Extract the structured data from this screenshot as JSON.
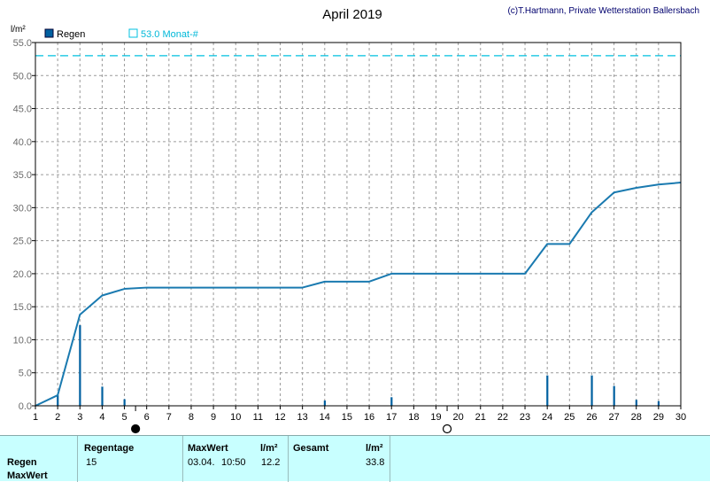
{
  "chart_data": {
    "type": "bar",
    "title": "April 2019",
    "credit": "(c)T.Hartmann, Private Wetterstation Ballersbach",
    "ylabel": "l/m²",
    "ylim": [
      0,
      55
    ],
    "yticks": [
      "0.0",
      "5.0",
      "10.0",
      "15.0",
      "20.0",
      "25.0",
      "30.0",
      "35.0",
      "40.0",
      "45.0",
      "50.0",
      "55.0"
    ],
    "xlim": [
      1,
      30
    ],
    "xticks": [
      "1",
      "2",
      "3",
      "4",
      "5",
      "6",
      "7",
      "8",
      "9",
      "10",
      "11",
      "12",
      "13",
      "14",
      "15",
      "16",
      "17",
      "18",
      "19",
      "20",
      "21",
      "22",
      "23",
      "24",
      "25",
      "26",
      "27",
      "28",
      "29",
      "30"
    ],
    "grid": true,
    "legend": [
      {
        "label": "Regen",
        "color": "#0060a0"
      },
      {
        "label": "53.0 Monat-#",
        "color": "#00c0e0"
      }
    ],
    "bars": {
      "name": "Regen",
      "x": [
        2,
        3,
        4,
        5,
        14,
        17,
        24,
        26,
        27,
        28,
        29
      ],
      "values": [
        1.6,
        12.2,
        2.9,
        1.0,
        0.8,
        1.3,
        4.6,
        4.6,
        3.0,
        0.9,
        0.7
      ]
    },
    "cumulative": {
      "x": [
        1,
        2,
        3,
        4,
        5,
        6,
        13,
        14,
        16,
        17,
        23,
        24,
        25,
        26,
        27,
        28,
        29,
        30
      ],
      "values": [
        0,
        1.6,
        13.8,
        16.7,
        17.7,
        17.9,
        17.9,
        18.8,
        18.8,
        20.0,
        20.0,
        24.5,
        24.5,
        29.3,
        32.3,
        33.0,
        33.5,
        33.8
      ]
    },
    "reference_line": {
      "value": 53.0,
      "color": "#00c0e0"
    },
    "moon_phases": [
      {
        "day": 5.5,
        "phase": "new"
      },
      {
        "day": 19.5,
        "phase": "full"
      }
    ],
    "bar_color": "#0060a0",
    "line_color": "#1a7ab0"
  },
  "stats": {
    "row_regen": "Regen",
    "row_maxwert": "MaxWert",
    "regentage_header": "Regentage",
    "regentage_value": "15",
    "maxwert_header": "MaxWert",
    "maxwert_unit": "l/m²",
    "maxwert_date": "03.04.",
    "maxwert_time": "10:50",
    "maxwert_value": "12.2",
    "gesamt_header": "Gesamt",
    "gesamt_unit": "l/m²",
    "gesamt_value": "33.8"
  }
}
